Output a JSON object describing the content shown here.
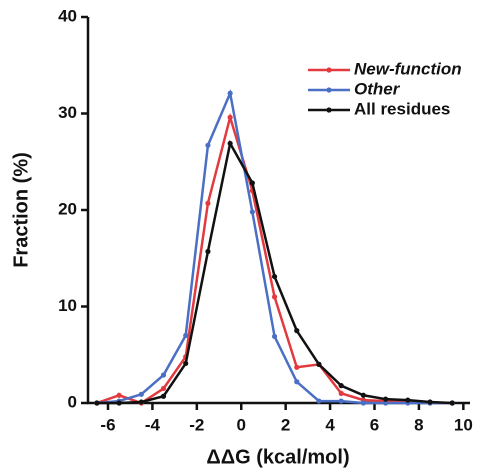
{
  "chart_data": {
    "type": "line",
    "x_label": "ΔΔG (kcal/mol)",
    "y_label": "Fraction (%)",
    "x": [
      -6.5,
      -5.5,
      -4.5,
      -3.5,
      -2.5,
      -1.5,
      -0.5,
      0.5,
      1.5,
      2.5,
      3.5,
      4.5,
      5.5,
      6.5,
      7.5,
      8.5,
      9.5
    ],
    "series": [
      {
        "name": "New-function",
        "color": "#e23a3f",
        "values": [
          0,
          0.8,
          0,
          1.5,
          4.8,
          20.7,
          29.6,
          22.0,
          11.0,
          3.7,
          4.0,
          1.0,
          0.3,
          0.2,
          0.1,
          0,
          0
        ]
      },
      {
        "name": "Other",
        "color": "#4a6fc4",
        "values": [
          0,
          0.2,
          0.9,
          2.9,
          7.0,
          26.7,
          32.1,
          19.8,
          6.9,
          2.2,
          0.2,
          0.2,
          0,
          0,
          0,
          0,
          0
        ]
      },
      {
        "name": "All residues",
        "color": "#111111",
        "values": [
          0,
          0,
          0.1,
          0.7,
          4.1,
          15.7,
          26.9,
          22.8,
          13.1,
          7.5,
          4.0,
          1.8,
          0.8,
          0.4,
          0.3,
          0.1,
          0
        ]
      }
    ],
    "xlim": [
      -6.9,
      10.3
    ],
    "xticks": [
      -6,
      -4,
      -2,
      0,
      2,
      4,
      6,
      8,
      10
    ],
    "ylim": [
      0,
      40
    ],
    "yticks": [
      0,
      10,
      20,
      30,
      40
    ],
    "legend": "upper right",
    "grid": false
  }
}
